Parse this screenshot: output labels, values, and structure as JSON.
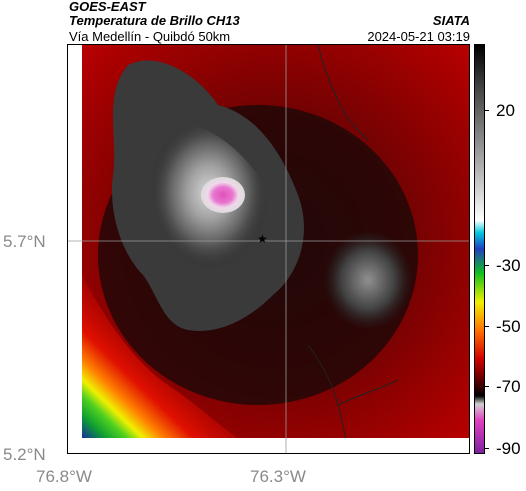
{
  "header": {
    "title": "GOES-EAST",
    "subtitle": "Temperatura de Brillo CH13",
    "location": "Vía Medellín - Quibdó 50km",
    "agency": "SIATA",
    "timestamp": "2024-05-21 03:19"
  },
  "map": {
    "lat_ticks": [
      "5.7°N",
      "5.2°N"
    ],
    "lon_ticks": [
      "76.8°W",
      "76.3°W"
    ],
    "marker": "star-icon"
  },
  "colorbar": {
    "labels": [
      "20",
      "-30",
      "-50",
      "-70",
      "-90"
    ],
    "colors": {
      "top": "#000000",
      "white": "#ffffff",
      "cyan": "#00c8e0",
      "blue": "#2040c0",
      "green": "#10c020",
      "yellow": "#f0f000",
      "orange": "#ff7000",
      "red": "#d00000",
      "dark_red": "#600000",
      "pink": "#e040c0",
      "purple": "#8020a0"
    }
  }
}
